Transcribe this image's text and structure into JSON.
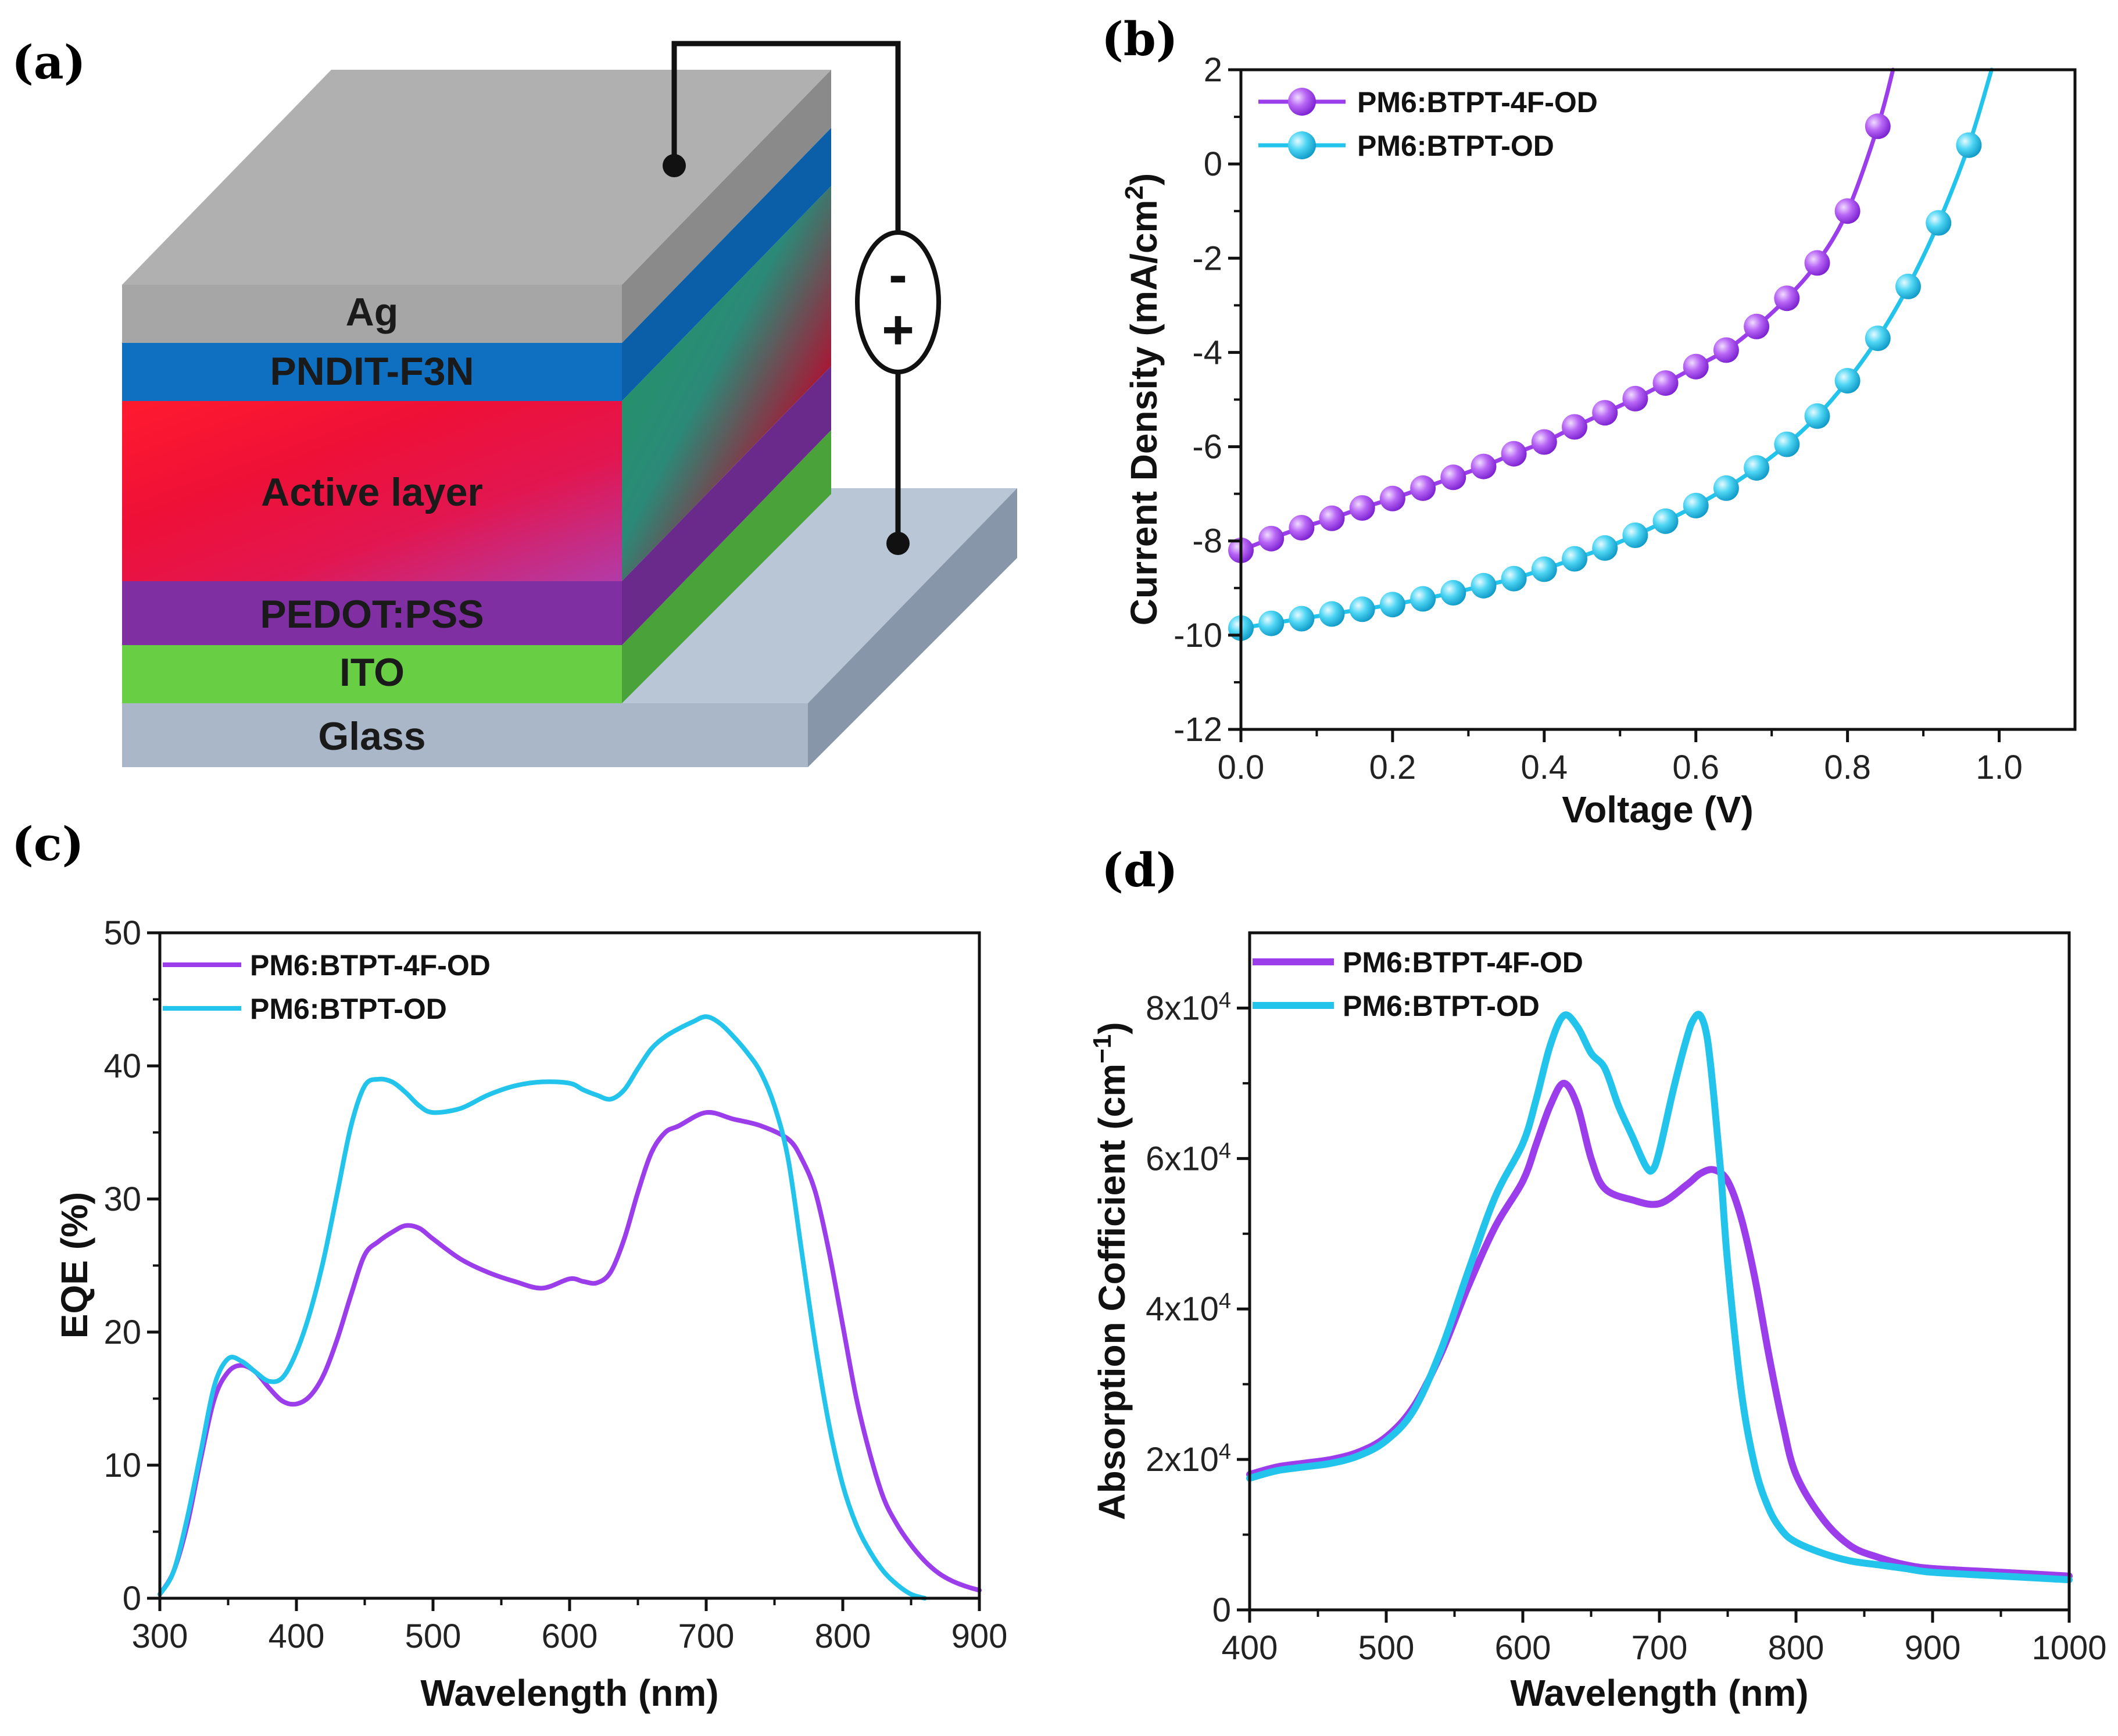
{
  "figure": {
    "panel_labels": [
      "(a)",
      "(b)",
      "(c)",
      "(d)"
    ],
    "colors": {
      "purple": "#9B3DEB",
      "cyan": "#22C4EC"
    }
  },
  "device": {
    "layers": [
      {
        "name": "Ag",
        "color": "#a6a6a6"
      },
      {
        "name": "PNDIT-F3N",
        "color": "#0f6fc0"
      },
      {
        "name": "Active layer",
        "color": "#e8102a"
      },
      {
        "name": "PEDOT:PSS",
        "color": "#7f2fa2"
      },
      {
        "name": "ITO",
        "color": "#68cf44"
      },
      {
        "name": "Glass",
        "color": "#a9b7c8"
      }
    ],
    "battery": {
      "minus": "-",
      "plus": "+"
    }
  },
  "chart_data": [
    {
      "panel": "(b)",
      "type": "line",
      "title": "",
      "xlabel": "Voltage (V)",
      "ylabel": "Current Density (mA/cm",
      "ylabel_sup": "2",
      "ylabel_end": ")",
      "xlim": [
        0.0,
        1.1
      ],
      "ylim": [
        -12,
        2
      ],
      "xticks": [
        0.0,
        0.2,
        0.4,
        0.6,
        0.8,
        1.0
      ],
      "xtick_labels": [
        "0.0",
        "0.2",
        "0.4",
        "0.6",
        "0.8",
        "1.0"
      ],
      "yticks": [
        -12,
        -10,
        -8,
        -6,
        -4,
        -2,
        0,
        2
      ],
      "ytick_labels": [
        "-12",
        "-10",
        "-8",
        "-6",
        "-4",
        "-2",
        "0",
        "2"
      ],
      "legend": "top-left",
      "series": [
        {
          "name": "PM6:BTPT-4F-OD",
          "color": "#9B3DEB",
          "x": [
            0.0,
            0.04,
            0.08,
            0.12,
            0.16,
            0.2,
            0.24,
            0.28,
            0.32,
            0.36,
            0.4,
            0.44,
            0.48,
            0.52,
            0.56,
            0.6,
            0.64,
            0.68,
            0.72,
            0.76,
            0.8,
            0.84,
            0.86
          ],
          "values": [
            -8.2,
            -7.95,
            -7.72,
            -7.52,
            -7.3,
            -7.1,
            -6.88,
            -6.65,
            -6.42,
            -6.15,
            -5.9,
            -5.58,
            -5.28,
            -4.98,
            -4.65,
            -4.3,
            -3.95,
            -3.45,
            -2.85,
            -2.1,
            -1.0,
            0.8,
            2.0
          ],
          "markers": [
            0.0,
            0.04,
            0.08,
            0.12,
            0.16,
            0.2,
            0.24,
            0.28,
            0.32,
            0.36,
            0.4,
            0.44,
            0.48,
            0.52,
            0.56,
            0.6,
            0.64,
            0.68,
            0.72,
            0.76,
            0.8,
            0.84
          ]
        },
        {
          "name": "PM6:BTPT-OD",
          "color": "#22C4EC",
          "x": [
            0.0,
            0.04,
            0.08,
            0.12,
            0.16,
            0.2,
            0.24,
            0.28,
            0.32,
            0.36,
            0.4,
            0.44,
            0.48,
            0.52,
            0.56,
            0.6,
            0.64,
            0.68,
            0.72,
            0.76,
            0.8,
            0.84,
            0.88,
            0.92,
            0.96,
            0.99
          ],
          "values": [
            -9.85,
            -9.75,
            -9.65,
            -9.55,
            -9.45,
            -9.35,
            -9.23,
            -9.1,
            -8.95,
            -8.8,
            -8.6,
            -8.38,
            -8.15,
            -7.88,
            -7.58,
            -7.25,
            -6.88,
            -6.45,
            -5.95,
            -5.35,
            -4.6,
            -3.7,
            -2.6,
            -1.25,
            0.4,
            2.0
          ],
          "markers": [
            0.0,
            0.04,
            0.08,
            0.12,
            0.16,
            0.2,
            0.24,
            0.28,
            0.32,
            0.36,
            0.4,
            0.44,
            0.48,
            0.52,
            0.56,
            0.6,
            0.64,
            0.68,
            0.72,
            0.76,
            0.8,
            0.84,
            0.88,
            0.92,
            0.96
          ]
        }
      ]
    },
    {
      "panel": "(c)",
      "type": "line",
      "title": "",
      "xlabel": "Wavelength (nm)",
      "ylabel": "EQE (%)",
      "xlim": [
        300,
        900
      ],
      "ylim": [
        0,
        50
      ],
      "xticks": [
        300,
        400,
        500,
        600,
        700,
        800,
        900
      ],
      "xtick_labels": [
        "300",
        "400",
        "500",
        "600",
        "700",
        "800",
        "900"
      ],
      "yticks": [
        0,
        10,
        20,
        30,
        40,
        50
      ],
      "ytick_labels": [
        "0",
        "10",
        "20",
        "30",
        "40",
        "50"
      ],
      "legend": "top-left",
      "series": [
        {
          "name": "PM6:BTPT-4F-OD",
          "color": "#9B3DEB",
          "x": [
            300,
            310,
            320,
            330,
            340,
            350,
            360,
            370,
            380,
            390,
            400,
            410,
            420,
            430,
            440,
            450,
            460,
            470,
            480,
            490,
            500,
            520,
            540,
            560,
            580,
            600,
            610,
            620,
            630,
            640,
            650,
            660,
            670,
            680,
            700,
            720,
            740,
            760,
            770,
            780,
            790,
            800,
            810,
            820,
            830,
            840,
            850,
            860,
            870,
            880,
            890,
            900
          ],
          "values": [
            0.3,
            2,
            5.5,
            10.5,
            15,
            17,
            17.5,
            17,
            15.8,
            14.8,
            14.6,
            15.2,
            16.8,
            19.5,
            22.8,
            25.8,
            26.8,
            27.5,
            28,
            27.8,
            27,
            25.5,
            24.5,
            23.8,
            23.3,
            24,
            23.8,
            23.7,
            24.5,
            27,
            30.5,
            33.5,
            35,
            35.5,
            36.5,
            36,
            35.5,
            34.5,
            33,
            30.5,
            26,
            20.5,
            15,
            10.8,
            7.5,
            5.5,
            4,
            2.8,
            1.9,
            1.3,
            0.9,
            0.6
          ]
        },
        {
          "name": "PM6:BTPT-OD",
          "color": "#22C4EC",
          "x": [
            300,
            310,
            320,
            330,
            340,
            350,
            360,
            370,
            380,
            390,
            400,
            410,
            420,
            430,
            440,
            450,
            460,
            470,
            480,
            490,
            500,
            520,
            540,
            560,
            580,
            600,
            610,
            620,
            630,
            640,
            650,
            660,
            670,
            680,
            690,
            700,
            710,
            720,
            730,
            740,
            750,
            760,
            770,
            780,
            790,
            800,
            810,
            820,
            830,
            840,
            850,
            860
          ],
          "values": [
            0.3,
            2,
            6,
            11,
            16,
            18,
            17.8,
            17,
            16.3,
            16.6,
            18.5,
            21.5,
            25.5,
            30.5,
            35.5,
            38.5,
            39,
            38.8,
            38,
            37,
            36.5,
            36.8,
            37.8,
            38.5,
            38.8,
            38.7,
            38.2,
            37.8,
            37.5,
            38.2,
            39.8,
            41.3,
            42.2,
            42.8,
            43.3,
            43.7,
            43.2,
            42.2,
            41,
            39.5,
            37,
            33,
            26,
            19,
            13,
            8.5,
            5.5,
            3.5,
            2,
            1,
            0.3,
            0
          ]
        }
      ]
    },
    {
      "panel": "(d)",
      "type": "line",
      "title": "",
      "xlabel": "Wavelength (nm)",
      "ylabel": "Absorption Cofficient (cm",
      "ylabel_sup": "−1",
      "ylabel_end": ")",
      "xlim": [
        400,
        1000
      ],
      "ylim": [
        0,
        90000
      ],
      "xticks": [
        400,
        500,
        600,
        700,
        800,
        900,
        1000
      ],
      "xtick_labels": [
        "400",
        "500",
        "600",
        "700",
        "800",
        "900",
        "1000"
      ],
      "yticks": [
        0,
        20000,
        40000,
        60000,
        80000
      ],
      "ytick_labels": [
        "0",
        "2x10",
        "4x10",
        "6x10",
        "8x10"
      ],
      "ytick_exponent": "4",
      "legend": "top-left",
      "series": [
        {
          "name": "PM6:BTPT-4F-OD",
          "color": "#9B3DEB",
          "x": [
            400,
            420,
            440,
            460,
            480,
            500,
            520,
            540,
            560,
            580,
            600,
            610,
            620,
            630,
            640,
            650,
            660,
            680,
            700,
            720,
            730,
            740,
            750,
            760,
            770,
            780,
            790,
            800,
            820,
            840,
            860,
            880,
            900,
            950,
            1000
          ],
          "values": [
            18000,
            19000,
            19500,
            20000,
            21000,
            23000,
            27000,
            34000,
            43000,
            51000,
            57000,
            62000,
            67000,
            70000,
            67000,
            60000,
            56000,
            54500,
            54000,
            56500,
            58000,
            58500,
            57000,
            52000,
            44000,
            34000,
            25000,
            18000,
            12000,
            8500,
            7000,
            6000,
            5500,
            5000,
            4500
          ]
        },
        {
          "name": "PM6:BTPT-OD",
          "color": "#22C4EC",
          "x": [
            400,
            420,
            440,
            460,
            480,
            500,
            520,
            540,
            560,
            580,
            600,
            610,
            620,
            630,
            640,
            650,
            660,
            670,
            680,
            690,
            695,
            700,
            710,
            720,
            725,
            730,
            735,
            740,
            745,
            750,
            760,
            770,
            780,
            790,
            800,
            820,
            840,
            860,
            880,
            900,
            950,
            1000
          ],
          "values": [
            17500,
            18500,
            19000,
            19500,
            20500,
            22500,
            26500,
            34500,
            45000,
            55000,
            62000,
            68000,
            75000,
            79000,
            77500,
            74000,
            72000,
            67000,
            63000,
            59000,
            58500,
            61000,
            69000,
            76000,
            78500,
            79000,
            76000,
            68000,
            58000,
            46000,
            29000,
            19000,
            13500,
            10500,
            9000,
            7500,
            6500,
            6000,
            5500,
            5000,
            4500,
            4000
          ]
        }
      ]
    }
  ]
}
